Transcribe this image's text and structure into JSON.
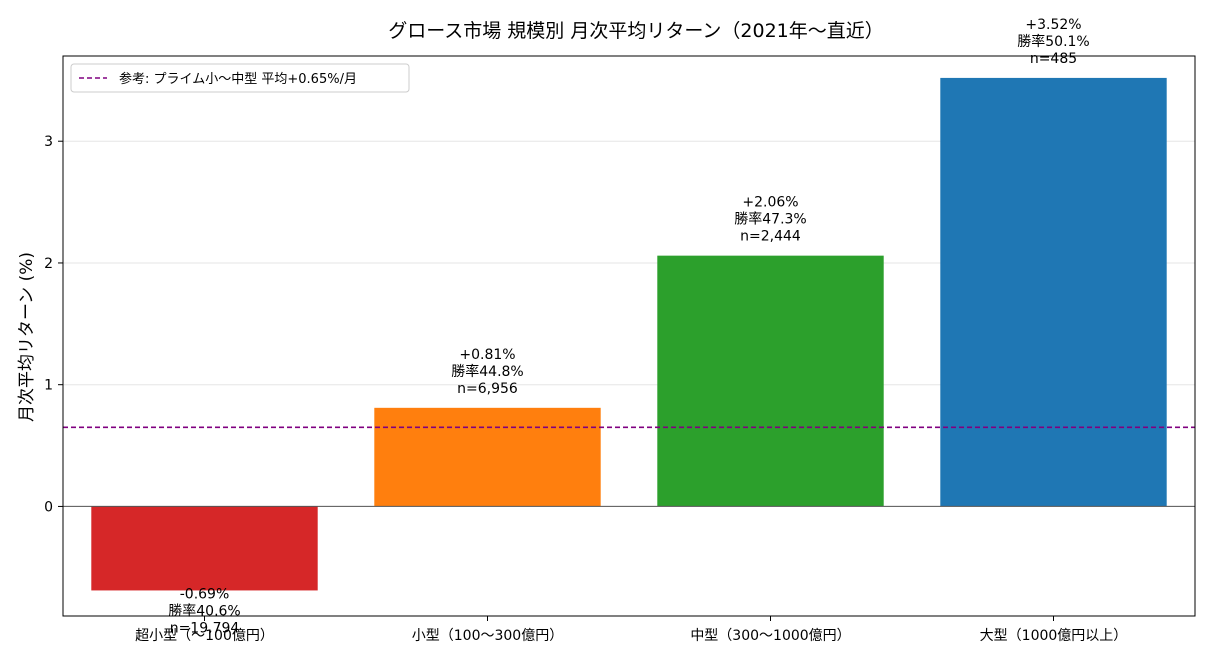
{
  "chart_data": {
    "type": "bar",
    "title": "グロース市場 規模別 月次平均リターン（2021年〜直近）",
    "xlabel": "",
    "ylabel": "月次平均リターン (%)",
    "ylim": [
      -0.9,
      3.7
    ],
    "yticks": [
      0,
      1,
      2,
      3
    ],
    "grid": "horizontal",
    "legend_position": "top-left",
    "categories": [
      "超小型（〜100億円）",
      "小型（100〜300億円）",
      "中型（300〜1000億円）",
      "大型（1000億円以上）"
    ],
    "values": [
      -0.69,
      0.81,
      2.06,
      3.52
    ],
    "colors": [
      "#d62728",
      "#ff7f0e",
      "#2ca02c",
      "#1f77b4"
    ],
    "data_labels": [
      [
        "-0.69%",
        "勝率40.6%",
        "n=19,794"
      ],
      [
        "+0.81%",
        "勝率44.8%",
        "n=6,956"
      ],
      [
        "+2.06%",
        "勝率47.3%",
        "n=2,444"
      ],
      [
        "+3.52%",
        "勝率50.1%",
        "n=485"
      ]
    ],
    "reference_line": {
      "value": 0.65,
      "label": "参考: プライム小〜中型 平均+0.65%/月",
      "color": "#800080"
    }
  }
}
